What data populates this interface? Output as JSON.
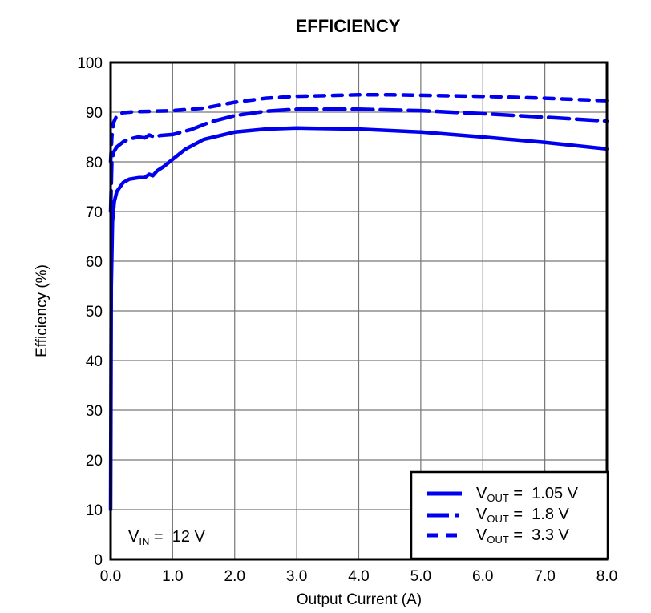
{
  "chart_data": {
    "type": "line",
    "title": "EFFICIENCY",
    "xlabel": "Output Current (A)",
    "ylabel": "Efficiency (%)",
    "xlim": [
      0,
      8
    ],
    "ylim": [
      0,
      100
    ],
    "x_ticks": [
      "0.0",
      "1.0",
      "2.0",
      "3.0",
      "4.0",
      "5.0",
      "6.0",
      "7.0",
      "8.0"
    ],
    "y_ticks": [
      "0",
      "10",
      "20",
      "30",
      "40",
      "50",
      "60",
      "70",
      "80",
      "90",
      "100"
    ],
    "grid": true,
    "legend_position": "bottom-right",
    "annotation": {
      "main": "V",
      "sub": "IN",
      "rest": " =  12 V"
    },
    "color": "#0000ee",
    "series": [
      {
        "name": "VOUT = 1.05 V",
        "legend": {
          "main": "V",
          "sub": "OUT",
          "rest": " =  1.05 V"
        },
        "style": "solid",
        "x": [
          0.0,
          0.01,
          0.03,
          0.06,
          0.1,
          0.2,
          0.3,
          0.45,
          0.55,
          0.62,
          0.68,
          0.75,
          0.85,
          1.0,
          1.2,
          1.5,
          2.0,
          2.5,
          3.0,
          4.0,
          5.0,
          6.0,
          7.0,
          8.0
        ],
        "y": [
          10,
          55,
          68,
          72,
          74,
          75.8,
          76.5,
          76.8,
          76.8,
          77.5,
          77.2,
          78.2,
          79.0,
          80.5,
          82.5,
          84.5,
          86.0,
          86.6,
          86.8,
          86.6,
          86.0,
          85.0,
          83.9,
          82.6
        ]
      },
      {
        "name": "VOUT = 1.8 V",
        "legend": {
          "main": "V",
          "sub": "OUT",
          "rest": " =  1.8 V"
        },
        "style": "dash-dot",
        "x": [
          0.0,
          0.02,
          0.05,
          0.1,
          0.2,
          0.3,
          0.45,
          0.55,
          0.62,
          0.7,
          0.8,
          1.0,
          1.3,
          1.6,
          2.0,
          2.5,
          3.0,
          4.0,
          5.0,
          6.0,
          7.0,
          8.0
        ],
        "y": [
          70,
          80,
          82,
          83,
          84,
          84.6,
          85.0,
          84.8,
          85.4,
          85.0,
          85.3,
          85.5,
          86.5,
          88.0,
          89.3,
          90.2,
          90.6,
          90.6,
          90.3,
          89.7,
          89.0,
          88.2
        ]
      },
      {
        "name": "VOUT = 3.3 V",
        "legend": {
          "main": "V",
          "sub": "OUT",
          "rest": " =  3.3 V"
        },
        "style": "dashed",
        "x": [
          0.0,
          0.02,
          0.05,
          0.1,
          0.2,
          0.4,
          0.7,
          1.0,
          1.5,
          2.0,
          2.5,
          3.0,
          4.0,
          4.5,
          5.0,
          6.0,
          7.0,
          8.0
        ],
        "y": [
          80,
          85,
          88,
          89.3,
          89.9,
          90.1,
          90.2,
          90.3,
          90.8,
          92.0,
          92.8,
          93.2,
          93.5,
          93.5,
          93.4,
          93.2,
          92.8,
          92.3
        ]
      }
    ]
  }
}
